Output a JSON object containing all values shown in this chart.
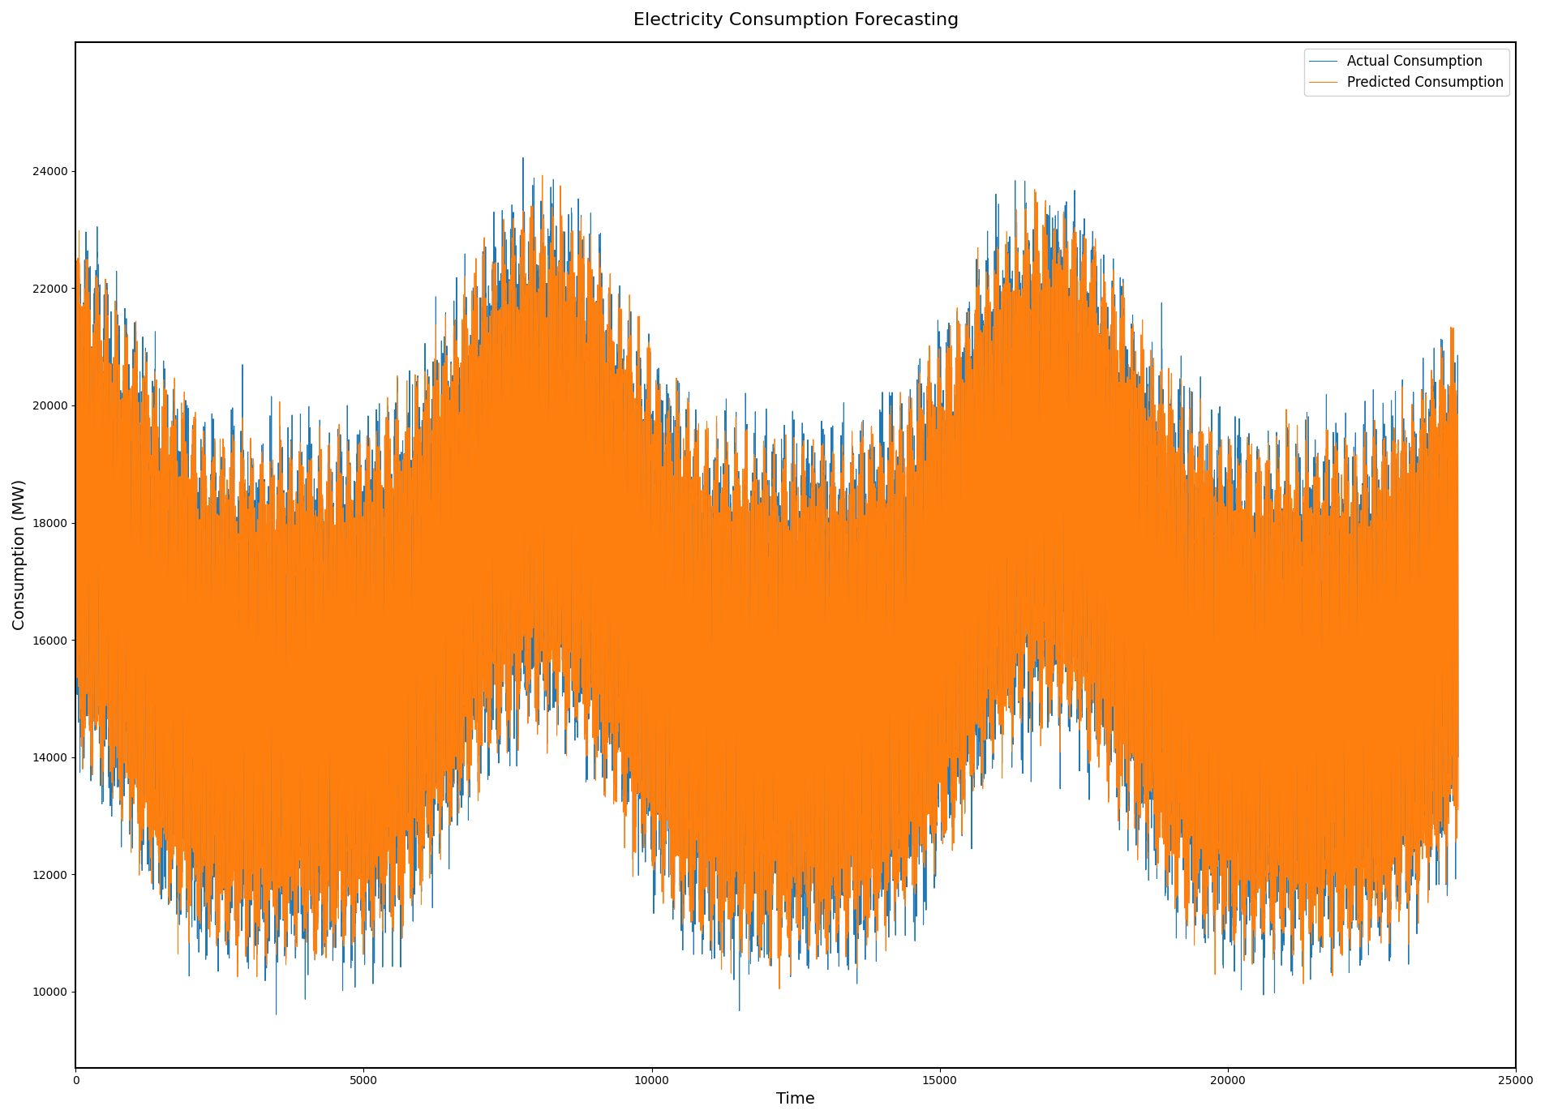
{
  "title": "Electricity Consumption Forecasting",
  "xlabel": "Time",
  "ylabel": "Consumption (MW)",
  "actual_color": "#1f77b4",
  "predicted_color": "#ff7f0e",
  "actual_label": "Actual Consumption",
  "predicted_label": "Predicted Consumption",
  "xlim": [
    0,
    24000
  ],
  "ylim": [
    8700,
    26200
  ],
  "figsize": [
    19.06,
    13.8
  ],
  "dpi": 100,
  "n_points": 24000,
  "seed": 42,
  "legend_loc": "upper right"
}
